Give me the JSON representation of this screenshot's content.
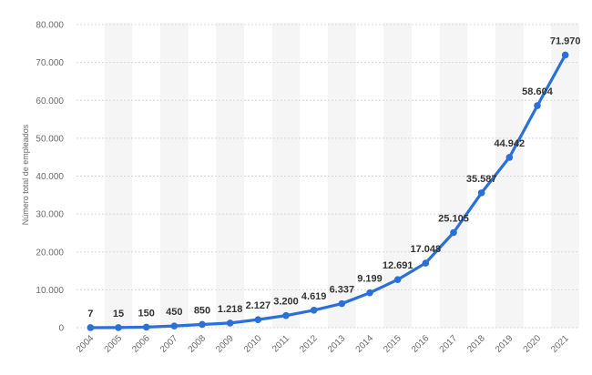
{
  "chart_data": {
    "type": "line",
    "title": "",
    "xlabel": "",
    "ylabel": "Número total de empleados",
    "x": [
      "2004",
      "2005",
      "2006",
      "2007",
      "2008",
      "2009",
      "2010",
      "2011",
      "2012",
      "2013",
      "2014",
      "2015",
      "2016",
      "2017",
      "2018",
      "2019",
      "2020",
      "2021"
    ],
    "series": [
      {
        "values": [
          7,
          15,
          150,
          450,
          850,
          1218,
          2127,
          3200,
          4619,
          6337,
          9199,
          12691,
          17048,
          25105,
          35587,
          44942,
          58604,
          71970
        ],
        "labels": [
          "7",
          "15",
          "150",
          "450",
          "850",
          "1.218",
          "2.127",
          "3.200",
          "4.619",
          "6.337",
          "9.199",
          "12.691",
          "17.048",
          "25.105",
          "35.587",
          "44.942",
          "58.604",
          "71.970"
        ]
      }
    ],
    "ylim": [
      0,
      80000
    ],
    "yticks": [
      0,
      10000,
      20000,
      30000,
      40000,
      50000,
      60000,
      70000,
      80000
    ],
    "ytick_labels": [
      "0",
      "10.000",
      "20.000",
      "30.000",
      "40.000",
      "50.000",
      "60.000",
      "70.000",
      "80.000"
    ],
    "grid": true,
    "legend": "none",
    "colors": {
      "line": "#2a70d8",
      "marker": "#2a70d8",
      "band": "#f5f5f5",
      "grid": "#d8d8d8"
    }
  }
}
